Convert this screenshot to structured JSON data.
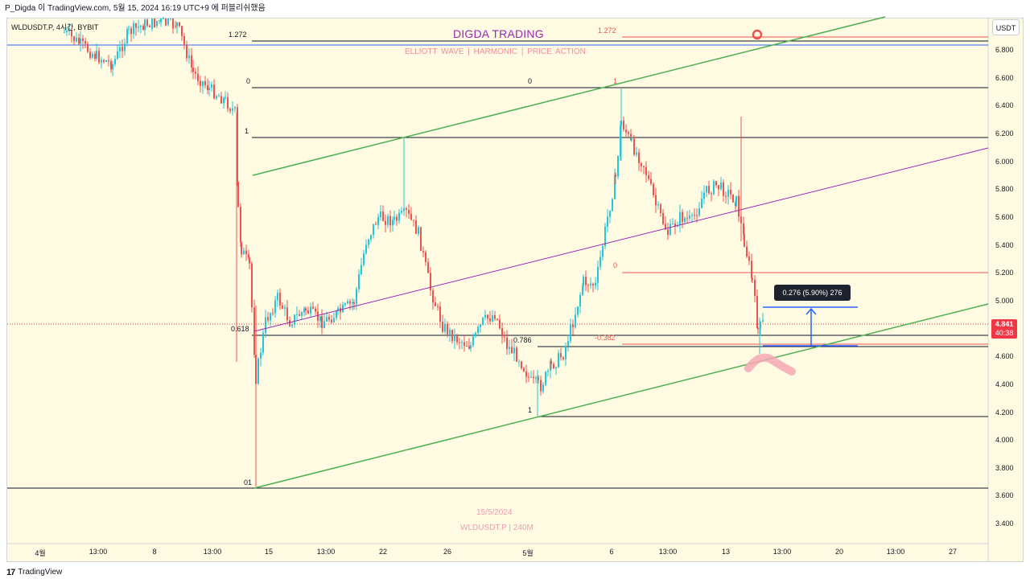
{
  "topbar": {
    "text": "P_Digda 이 TradingView.com, 5월 15, 2024 16:19 UTC+9 에 퍼블리쉬했음"
  },
  "symbol": {
    "label": "WLDUSDT.P, 4시간, BYBIT"
  },
  "unit": "USDT",
  "overlay": {
    "title": "DIGDA TRADING",
    "subtitle": "ELLIOTT WAVE  |  HARMONIC  |  PRICE ACTION",
    "watermark_date": "15/5/2024",
    "watermark_symbol": "WLDUSDT.P  |  240M"
  },
  "y_axis": {
    "ticks": [
      "6.800",
      "6.600",
      "6.400",
      "6.200",
      "6.000",
      "5.800",
      "5.600",
      "5.400",
      "5.200",
      "5.000",
      "4.600",
      "4.400",
      "4.200",
      "4.000",
      "3.800",
      "3.600",
      "3.400"
    ]
  },
  "x_axis": {
    "ticks": [
      "4월",
      "13:00",
      "8",
      "13:00",
      "15",
      "13:00",
      "22",
      "26",
      "5월",
      "6",
      "13:00",
      "13",
      "13:00",
      "20",
      "13:00",
      "27"
    ]
  },
  "fib_labels": {
    "left_1272": "1.272",
    "left_0": "0",
    "left_1": "1",
    "left_0618": "0.618",
    "left_01": "01",
    "mid_0": "0",
    "mid_0786": "0.786",
    "mid_1": "1",
    "top_1": "1",
    "red_1272": "1.272",
    "red_0": "0",
    "red_n0382": "-0.382"
  },
  "measure": {
    "label": "0.276 (5.90%) 276"
  },
  "price_badge": {
    "price": "4.841",
    "countdown": "40:38"
  },
  "footer": {
    "brand": "TradingView"
  },
  "colors": {
    "chart_bg": "#fefbe2",
    "bull": "#26c6da",
    "bear": "#ef5350",
    "channel": "#4caf50",
    "midline": "#9c27b0",
    "fib_black": "#131722",
    "fib_red": "#ef5350",
    "measure": "#2962ff",
    "title": "#9c27b0",
    "pink_text": "#ef9db1"
  },
  "icons": {
    "target": "target-circle-icon",
    "logo": "tradingview-logo-icon"
  }
}
